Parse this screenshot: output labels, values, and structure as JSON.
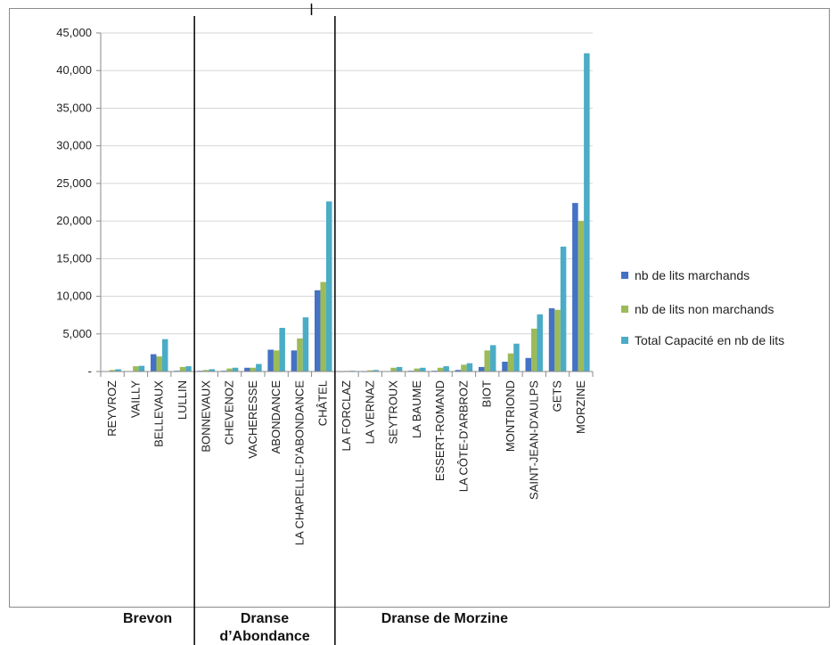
{
  "chart_data": {
    "type": "bar",
    "categories": [
      "REYVROZ",
      "VAILLY",
      "BELLEVAUX",
      "LULLIN",
      "BONNEVAUX",
      "CHEVENOZ",
      "VACHERESSE",
      "ABONDANCE",
      "LA CHAPELLE-D'ABONDANCE",
      "CHÂTEL",
      "LA FORCLAZ",
      "LA VERNAZ",
      "SEYTROUX",
      "LA BAUME",
      "ESSERT-ROMAND",
      "LA CÔTE-D'ARBROZ",
      "BIOT",
      "MONTRIOND",
      "SAINT-JEAN-D'AULPS",
      "GETS",
      "MORZINE"
    ],
    "series": [
      {
        "name": "nb de lits marchands",
        "color": "#4472C4",
        "values": [
          50,
          50,
          2300,
          100,
          100,
          100,
          500,
          2900,
          2800,
          10800,
          20,
          20,
          50,
          100,
          100,
          200,
          600,
          1300,
          1800,
          8400,
          22400
        ]
      },
      {
        "name": "nb de lits non marchands",
        "color": "#9BBB59",
        "values": [
          200,
          700,
          2000,
          600,
          200,
          400,
          500,
          2800,
          4400,
          11900,
          80,
          150,
          500,
          400,
          500,
          900,
          2800,
          2400,
          5700,
          8200,
          20000
        ]
      },
      {
        "name": "Total Capacité en nb de lits",
        "color": "#4BACC6",
        "values": [
          300,
          750,
          4300,
          700,
          300,
          500,
          1000,
          5800,
          7200,
          22600,
          100,
          200,
          600,
          500,
          700,
          1100,
          3500,
          3700,
          7600,
          16600,
          42300
        ]
      }
    ],
    "groups": [
      {
        "label_lines": [
          "Brevon"
        ],
        "count": 4
      },
      {
        "label_lines": [
          "Dranse",
          "d’Abondance"
        ],
        "count": 6
      },
      {
        "label_lines": [
          "Dranse de Morzine"
        ],
        "count": 11
      }
    ],
    "y_ticks": [
      {
        "value": 0,
        "label": "-"
      },
      {
        "value": 5000,
        "label": "5,000"
      },
      {
        "value": 10000,
        "label": "10,000"
      },
      {
        "value": 15000,
        "label": "15,000"
      },
      {
        "value": 20000,
        "label": "20,000"
      },
      {
        "value": 25000,
        "label": "25,000"
      },
      {
        "value": 30000,
        "label": "30,000"
      },
      {
        "value": 35000,
        "label": "35,000"
      },
      {
        "value": 40000,
        "label": "40,000"
      },
      {
        "value": 45000,
        "label": "45,000"
      }
    ],
    "ylim": [
      0,
      45000
    ],
    "grid": true,
    "legend": "right"
  }
}
